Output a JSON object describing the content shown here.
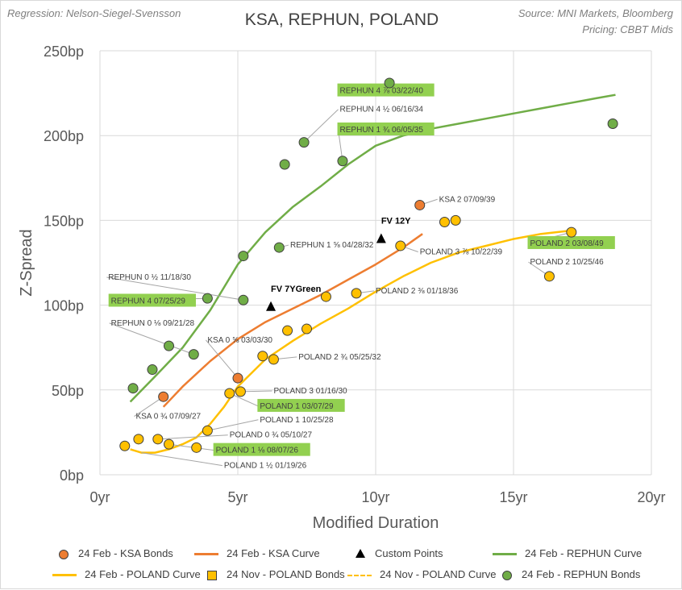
{
  "header": {
    "title": "KSA, REPHUN, POLAND",
    "note_left": "Regression: Nelson-Siegel-Svensson",
    "note_right_1": "Source: MNI Markets, Bloomberg",
    "note_right_2": "Pricing: CBBT Mids"
  },
  "chart_data": {
    "type": "scatter",
    "title": "KSA, REPHUN, POLAND",
    "xlabel": "Modified Duration",
    "ylabel": "Z-Spread",
    "xlim": [
      0,
      20
    ],
    "ylim": [
      0,
      250
    ],
    "x_ticks": [
      0,
      5,
      10,
      15,
      20
    ],
    "x_tick_labels": [
      "0yr",
      "5yr",
      "10yr",
      "15yr",
      "20yr"
    ],
    "y_ticks": [
      0,
      50,
      100,
      150,
      200,
      250
    ],
    "y_tick_labels": [
      "0bp",
      "50bp",
      "100bp",
      "150bp",
      "200bp",
      "250bp"
    ],
    "grid": true,
    "legend_position": "bottom",
    "colors": {
      "ksa": "#ed7d31",
      "rephun": "#70ad47",
      "poland": "#ffc000",
      "custom": "#000000",
      "label_box": "#92d050",
      "leader": "#a6a6a6"
    },
    "series": [
      {
        "name": "24 Feb - KSA Bonds",
        "kind": "points",
        "color": "#ed7d31",
        "points": [
          {
            "x": 2.3,
            "y": 46,
            "label": "KSA 0 ¾ 07/09/27",
            "lx": 1.3,
            "ly": 33,
            "anchor": "start"
          },
          {
            "x": 5.0,
            "y": 57,
            "label": "KSA 0 ⅝ 03/03/30",
            "lx": 3.9,
            "ly": 78,
            "anchor": "start"
          },
          {
            "x": 11.6,
            "y": 159,
            "label": "KSA 2 07/09/39",
            "lx": 12.3,
            "ly": 161,
            "anchor": "start"
          }
        ]
      },
      {
        "name": "24 Feb - KSA Curve",
        "kind": "line",
        "color": "#ed7d31",
        "x": [
          2.3,
          3.0,
          4.0,
          5.0,
          6.0,
          7.0,
          8.0,
          9.0,
          10.0,
          11.0,
          11.7
        ],
        "y": [
          40,
          52,
          67,
          80,
          90,
          98,
          106,
          115,
          124,
          134,
          142
        ]
      },
      {
        "name": "Custom Points",
        "kind": "triangles",
        "color": "#000000",
        "points": [
          {
            "x": 6.2,
            "y": 99,
            "label": "FV 7YGreen",
            "lx": 6.2,
            "ly": 108,
            "anchor": "start"
          },
          {
            "x": 10.2,
            "y": 139,
            "label": "FV 12Y",
            "lx": 10.2,
            "ly": 148,
            "anchor": "start"
          }
        ]
      },
      {
        "name": "24 Feb - REPHUN Curve",
        "kind": "line",
        "color": "#70ad47",
        "x": [
          1.1,
          2.0,
          3.0,
          4.0,
          5.0,
          6.0,
          7.0,
          8.0,
          9.0,
          10.0,
          11.0,
          12.0,
          13.0,
          14.0,
          15.0,
          16.0,
          17.0,
          18.0,
          18.7
        ],
        "y": [
          43,
          58,
          75,
          97,
          124,
          143,
          158,
          170,
          183,
          194,
          200,
          204,
          207,
          210,
          213,
          216,
          219,
          222,
          224
        ]
      },
      {
        "name": "24 Feb - POLAND Curve",
        "kind": "line",
        "color": "#ffc000",
        "x": [
          1.1,
          1.5,
          2.0,
          2.5,
          3.0,
          3.5,
          4.0,
          4.5,
          5.0,
          6.0,
          7.0,
          8.0,
          9.0,
          10.0,
          11.0,
          12.0,
          13.0,
          14.0,
          15.0,
          16.0,
          17.1
        ],
        "y": [
          15,
          13,
          13,
          15,
          18,
          22,
          30,
          40,
          52,
          68,
          79,
          89,
          98,
          108,
          117,
          125,
          131,
          135,
          139,
          142,
          144
        ]
      },
      {
        "name": "24 Nov - POLAND Bonds",
        "kind": "legend-only",
        "color": "#ffc000"
      },
      {
        "name": "24 Nov - POLAND Curve",
        "kind": "legend-only",
        "color": "#ffc000"
      },
      {
        "name": "POLAND Bonds",
        "kind": "points",
        "color": "#ffc000",
        "points": [
          {
            "x": 0.9,
            "y": 17
          },
          {
            "x": 1.4,
            "y": 21
          },
          {
            "x": 2.1,
            "y": 21
          },
          {
            "x": 2.5,
            "y": 18
          },
          {
            "x": 3.5,
            "y": 16,
            "label": "POLAND 1 ½ 01/19/26",
            "lx": 4.5,
            "ly": 4,
            "anchor": "start",
            "fromx": 1.5,
            "fromy": 13
          },
          {
            "x": 3.9,
            "y": 26
          },
          {
            "x": 4.7,
            "y": 48
          },
          {
            "x": 5.1,
            "y": 49,
            "label": "POLAND 3 01/16/30",
            "lx": 6.3,
            "ly": 48,
            "anchor": "start"
          },
          {
            "x": 5.9,
            "y": 70
          },
          {
            "x": 6.3,
            "y": 68,
            "label": "POLAND 2 ¾ 05/25/32",
            "lx": 7.2,
            "ly": 68,
            "anchor": "start"
          },
          {
            "x": 6.8,
            "y": 85
          },
          {
            "x": 7.5,
            "y": 86
          },
          {
            "x": 8.2,
            "y": 105
          },
          {
            "x": 9.3,
            "y": 107,
            "label": "POLAND 2 ⅜ 01/18/36",
            "lx": 10.0,
            "ly": 107,
            "anchor": "start"
          },
          {
            "x": 10.9,
            "y": 135,
            "label": "POLAND 3 ⅞ 10/22/39",
            "lx": 11.6,
            "ly": 130,
            "anchor": "start"
          },
          {
            "x": 12.5,
            "y": 149
          },
          {
            "x": 12.9,
            "y": 150
          },
          {
            "x": 16.3,
            "y": 117,
            "label": "POLAND 2 10/25/46",
            "lx": 15.6,
            "ly": 124,
            "anchor": "start"
          },
          {
            "x": 17.1,
            "y": 143,
            "label": "POLAND 2 03/08/49",
            "lx": 15.6,
            "ly": 135,
            "anchor": "start",
            "boxed": true
          }
        ]
      },
      {
        "name": "POLAND Label Leaders",
        "kind": "annotations",
        "color": "#a6a6a6",
        "points": [
          {
            "x": 2.5,
            "y": 18,
            "label": "POLAND 1 ⅛ 08/07/26",
            "lx": 4.2,
            "ly": 13,
            "anchor": "start",
            "boxed": true
          },
          {
            "x": 2.1,
            "y": 21,
            "label": "POLAND 0 ¾ 05/10/27",
            "lx": 4.7,
            "ly": 22,
            "anchor": "start"
          },
          {
            "x": 3.9,
            "y": 26,
            "label": "POLAND 1 10/25/28",
            "lx": 5.8,
            "ly": 31,
            "anchor": "start"
          },
          {
            "x": 4.7,
            "y": 48,
            "label": "POLAND 1 03/07/29",
            "lx": 5.8,
            "ly": 39,
            "anchor": "start",
            "boxed": true
          }
        ]
      },
      {
        "name": "24 Feb - REPHUN Bonds",
        "kind": "points",
        "color": "#70ad47",
        "points": [
          {
            "x": 1.2,
            "y": 51
          },
          {
            "x": 1.9,
            "y": 62
          },
          {
            "x": 2.5,
            "y": 76
          },
          {
            "x": 3.4,
            "y": 71,
            "label": "REPHUN 0 ⅛ 09/21/28",
            "lx": 0.4,
            "ly": 88,
            "anchor": "start"
          },
          {
            "x": 3.9,
            "y": 104,
            "label": "REPHUN 4 07/25/29",
            "lx": 0.4,
            "ly": 101,
            "anchor": "start",
            "boxed": true
          },
          {
            "x": 5.2,
            "y": 103,
            "label": "REPHUN 0 ½ 11/18/30",
            "lx": 0.3,
            "ly": 115,
            "anchor": "start"
          },
          {
            "x": 5.2,
            "y": 129
          },
          {
            "x": 6.5,
            "y": 134,
            "label": "REPHUN 1 ⅝ 04/28/32",
            "lx": 6.9,
            "ly": 134,
            "anchor": "start"
          },
          {
            "x": 6.7,
            "y": 183
          },
          {
            "x": 7.4,
            "y": 196,
            "label": "REPHUN 4 ½ 06/16/34",
            "lx": 8.7,
            "ly": 214,
            "anchor": "start"
          },
          {
            "x": 8.8,
            "y": 185,
            "label": "REPHUN 1 ¾ 06/05/35",
            "lx": 8.7,
            "ly": 202,
            "anchor": "start",
            "boxed": true
          },
          {
            "x": 10.5,
            "y": 231,
            "label": "REPHUN 4 ⅞ 03/22/40",
            "lx": 8.7,
            "ly": 225,
            "anchor": "start",
            "boxed": true
          },
          {
            "x": 18.6,
            "y": 207
          }
        ]
      }
    ],
    "legend": [
      {
        "name": "24 Feb - KSA Bonds",
        "symbol": "circle",
        "color": "#ed7d31"
      },
      {
        "name": "24 Feb - KSA Curve",
        "symbol": "line",
        "color": "#ed7d31"
      },
      {
        "name": "Custom Points",
        "symbol": "triangle",
        "color": "#000000"
      },
      {
        "name": "24 Feb - REPHUN Curve",
        "symbol": "line",
        "color": "#70ad47"
      },
      {
        "name": "24 Feb - POLAND Curve",
        "symbol": "line",
        "color": "#ffc000"
      },
      {
        "name": "24 Nov - POLAND Bonds",
        "symbol": "square",
        "color": "#ffc000"
      },
      {
        "name": "24 Nov - POLAND Curve",
        "symbol": "dashed",
        "color": "#ffc000"
      },
      {
        "name": "24 Feb - REPHUN Bonds",
        "symbol": "circle",
        "color": "#70ad47"
      }
    ]
  }
}
